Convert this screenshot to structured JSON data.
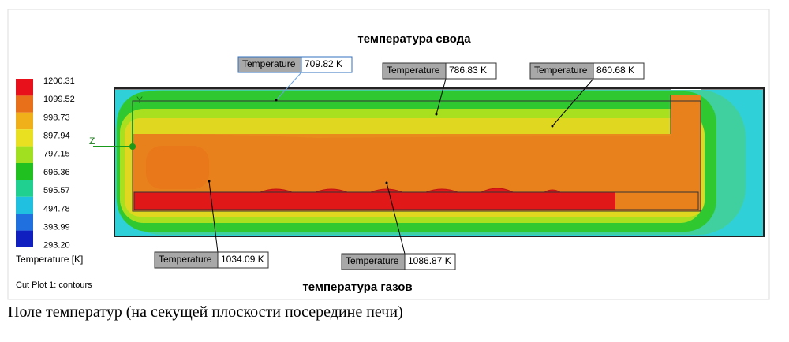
{
  "figure": {
    "top_title": "температура свода",
    "bottom_title": "температура газов",
    "legend": {
      "values": [
        "1200.31",
        "1099.52",
        "998.73",
        "897.94",
        "797.15",
        "696.36",
        "595.57",
        "494.78",
        "393.99",
        "293.20"
      ],
      "title": "Temperature [K]"
    },
    "plot_name": "Cut Plot 1: contours",
    "axes": [
      "Y",
      "Z"
    ],
    "probes": [
      {
        "label": "Temperature",
        "value": "709.82 K"
      },
      {
        "label": "Temperature",
        "value": "786.83 K"
      },
      {
        "label": "Temperature",
        "value": "860.68 K"
      },
      {
        "label": "Temperature",
        "value": "1034.09 K"
      },
      {
        "label": "Temperature",
        "value": "1086.87 K"
      }
    ]
  },
  "caption": "Поле  температур (на секущей плоскости посередине печи)"
}
